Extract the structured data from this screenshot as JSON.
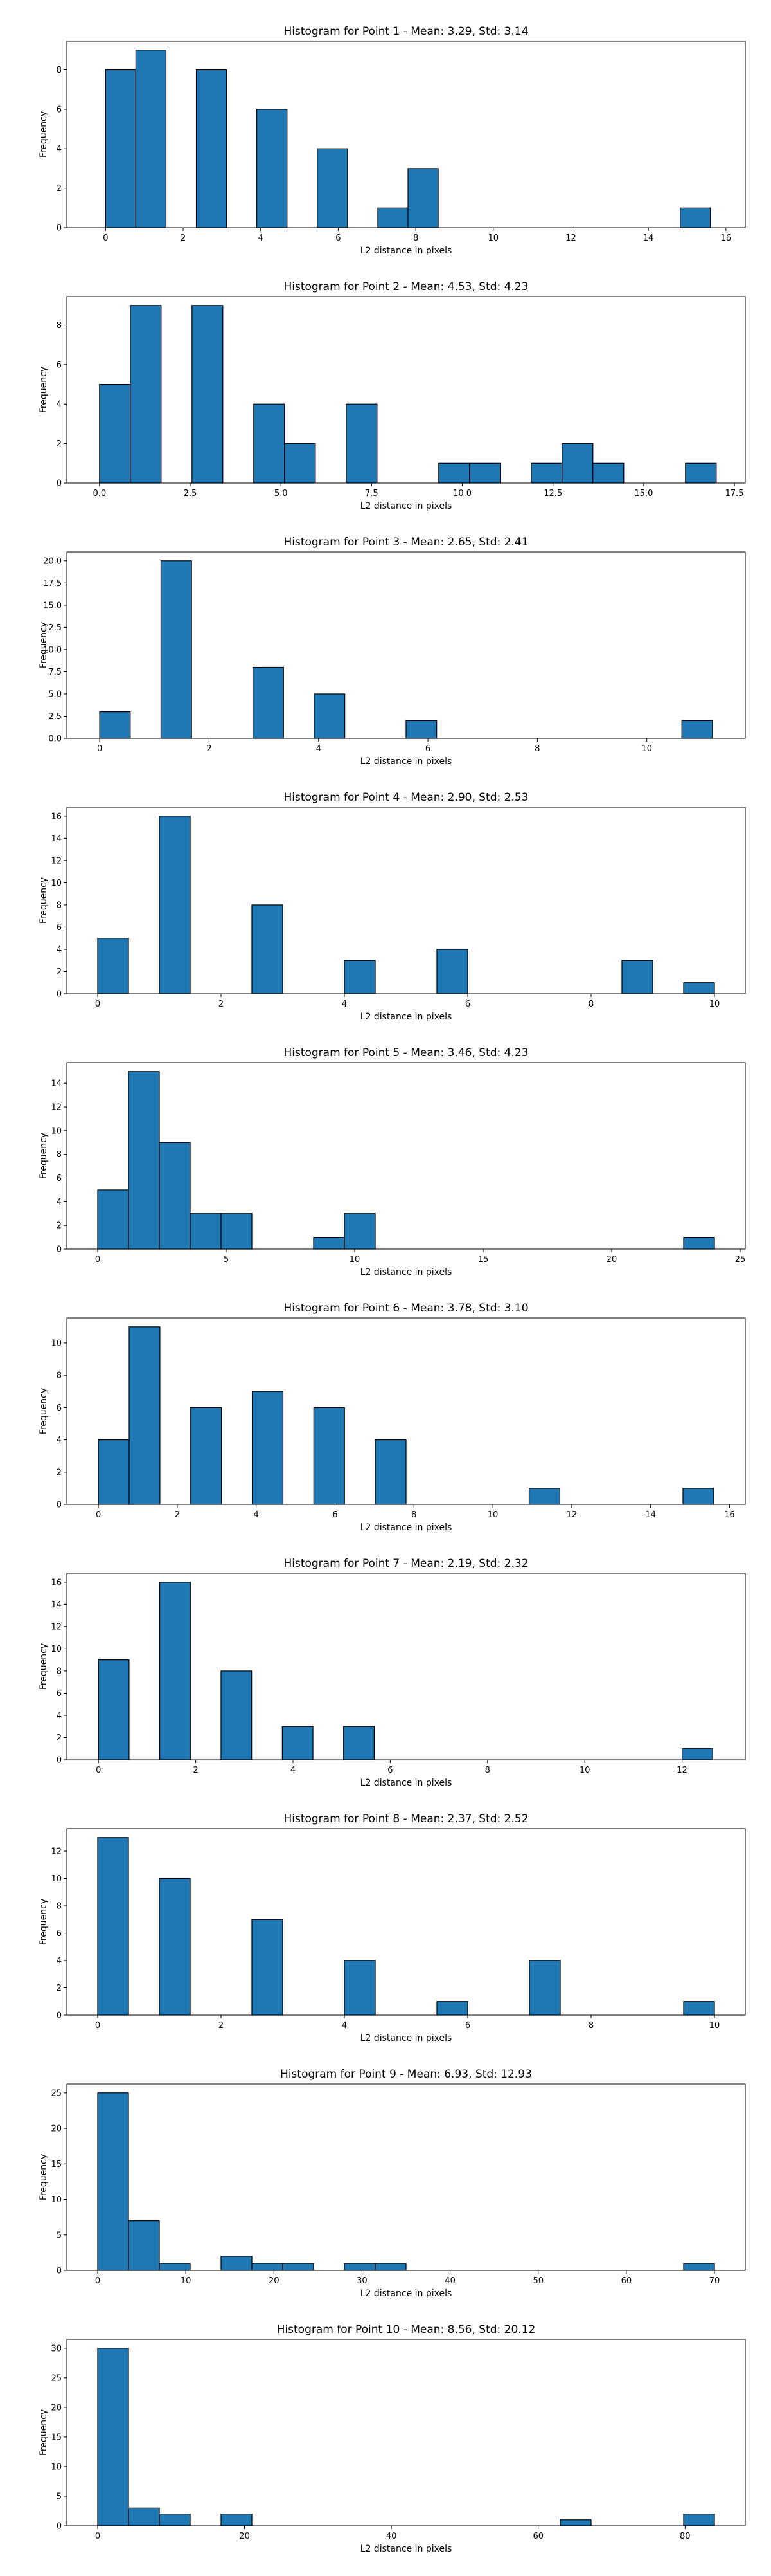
{
  "chart_data": [
    {
      "type": "bar",
      "title": "Histogram for Point 1 - Mean: 3.29, Std: 3.14",
      "xlabel": "L2 distance in pixels",
      "ylabel": "Frequency",
      "xlim": [
        -1.0,
        16.5
      ],
      "ylim": [
        0,
        9.45
      ],
      "xticks": [
        0,
        2,
        4,
        6,
        8,
        10,
        12,
        14,
        16
      ],
      "xtick_labels": [
        "0",
        "2",
        "4",
        "6",
        "8",
        "10",
        "12",
        "14",
        "16"
      ],
      "yticks": [
        0,
        2,
        4,
        6,
        8
      ],
      "ytick_labels": [
        "0",
        "2",
        "4",
        "6",
        "8"
      ],
      "bins": [
        {
          "x0": 0,
          "x1": 0.78,
          "count": 8
        },
        {
          "x0": 0.78,
          "x1": 1.56,
          "count": 9
        },
        {
          "x0": 2.34,
          "x1": 3.12,
          "count": 8
        },
        {
          "x0": 3.9,
          "x1": 4.68,
          "count": 6
        },
        {
          "x0": 5.46,
          "x1": 6.24,
          "count": 4
        },
        {
          "x0": 7.02,
          "x1": 7.8,
          "count": 1
        },
        {
          "x0": 7.8,
          "x1": 8.58,
          "count": 3
        },
        {
          "x0": 14.82,
          "x1": 15.6,
          "count": 1
        }
      ]
    },
    {
      "type": "bar",
      "title": "Histogram for Point 2 - Mean: 4.53, Std: 4.23",
      "xlabel": "L2 distance in pixels",
      "ylabel": "Frequency",
      "xlim": [
        -0.9,
        17.8
      ],
      "ylim": [
        0,
        9.45
      ],
      "xticks": [
        0,
        2.5,
        5,
        7.5,
        10,
        12.5,
        15,
        17.5
      ],
      "xtick_labels": [
        "0.0",
        "2.5",
        "5.0",
        "7.5",
        "10.0",
        "12.5",
        "15.0",
        "17.5"
      ],
      "yticks": [
        0,
        2,
        4,
        6,
        8
      ],
      "ytick_labels": [
        "0",
        "2",
        "4",
        "6",
        "8"
      ],
      "bins": [
        {
          "x0": 0,
          "x1": 0.85,
          "count": 5
        },
        {
          "x0": 0.85,
          "x1": 1.7,
          "count": 9
        },
        {
          "x0": 2.55,
          "x1": 3.4,
          "count": 9
        },
        {
          "x0": 4.25,
          "x1": 5.1,
          "count": 4
        },
        {
          "x0": 5.1,
          "x1": 5.95,
          "count": 2
        },
        {
          "x0": 6.8,
          "x1": 7.65,
          "count": 4
        },
        {
          "x0": 9.35,
          "x1": 10.2,
          "count": 1
        },
        {
          "x0": 10.2,
          "x1": 11.05,
          "count": 1
        },
        {
          "x0": 11.9,
          "x1": 12.75,
          "count": 1
        },
        {
          "x0": 12.75,
          "x1": 13.6,
          "count": 2
        },
        {
          "x0": 13.6,
          "x1": 14.45,
          "count": 1
        },
        {
          "x0": 16.15,
          "x1": 17.0,
          "count": 1
        }
      ]
    },
    {
      "type": "bar",
      "title": "Histogram for Point 3 - Mean: 2.65, Std: 2.41",
      "xlabel": "L2 distance in pixels",
      "ylabel": "Frequency",
      "xlim": [
        -0.6,
        11.8
      ],
      "ylim": [
        0,
        21.0
      ],
      "xticks": [
        0,
        2,
        4,
        6,
        8,
        10
      ],
      "xtick_labels": [
        "0",
        "2",
        "4",
        "6",
        "8",
        "10"
      ],
      "yticks": [
        0,
        2.5,
        5,
        7.5,
        10,
        12.5,
        15,
        17.5,
        20
      ],
      "ytick_labels": [
        "0.0",
        "2.5",
        "5.0",
        "7.5",
        "10.0",
        "12.5",
        "15.0",
        "17.5",
        "20.0"
      ],
      "bins": [
        {
          "x0": 0,
          "x1": 0.56,
          "count": 3
        },
        {
          "x0": 1.12,
          "x1": 1.68,
          "count": 20
        },
        {
          "x0": 2.8,
          "x1": 3.36,
          "count": 8
        },
        {
          "x0": 3.92,
          "x1": 4.48,
          "count": 5
        },
        {
          "x0": 5.6,
          "x1": 6.16,
          "count": 2
        },
        {
          "x0": 10.64,
          "x1": 11.2,
          "count": 2
        }
      ]
    },
    {
      "type": "bar",
      "title": "Histogram for Point 4 - Mean: 2.90, Std: 2.53",
      "xlabel": "L2 distance in pixels",
      "ylabel": "Frequency",
      "xlim": [
        -0.5,
        10.5
      ],
      "ylim": [
        0,
        16.8
      ],
      "xticks": [
        0,
        2,
        4,
        6,
        8,
        10
      ],
      "xtick_labels": [
        "0",
        "2",
        "4",
        "6",
        "8",
        "10"
      ],
      "yticks": [
        0,
        2,
        4,
        6,
        8,
        10,
        12,
        14,
        16
      ],
      "ytick_labels": [
        "0",
        "2",
        "4",
        "6",
        "8",
        "10",
        "12",
        "14",
        "16"
      ],
      "bins": [
        {
          "x0": 0,
          "x1": 0.5,
          "count": 5
        },
        {
          "x0": 1.0,
          "x1": 1.5,
          "count": 16
        },
        {
          "x0": 2.5,
          "x1": 3.0,
          "count": 8
        },
        {
          "x0": 4.0,
          "x1": 4.5,
          "count": 3
        },
        {
          "x0": 5.5,
          "x1": 6.0,
          "count": 4
        },
        {
          "x0": 8.5,
          "x1": 9.0,
          "count": 3
        },
        {
          "x0": 9.5,
          "x1": 10.0,
          "count": 1
        }
      ]
    },
    {
      "type": "bar",
      "title": "Histogram for Point 5 - Mean: 3.46, Std: 4.23",
      "xlabel": "L2 distance in pixels",
      "ylabel": "Frequency",
      "xlim": [
        -1.2,
        25.2
      ],
      "ylim": [
        0,
        15.75
      ],
      "xticks": [
        0,
        5,
        10,
        15,
        20,
        25
      ],
      "xtick_labels": [
        "0",
        "5",
        "10",
        "15",
        "20",
        "25"
      ],
      "yticks": [
        0,
        2,
        4,
        6,
        8,
        10,
        12,
        14
      ],
      "ytick_labels": [
        "0",
        "2",
        "4",
        "6",
        "8",
        "10",
        "12",
        "14"
      ],
      "bins": [
        {
          "x0": 0,
          "x1": 1.2,
          "count": 5
        },
        {
          "x0": 1.2,
          "x1": 2.4,
          "count": 15
        },
        {
          "x0": 2.4,
          "x1": 3.6,
          "count": 9
        },
        {
          "x0": 3.6,
          "x1": 4.8,
          "count": 3
        },
        {
          "x0": 4.8,
          "x1": 6.0,
          "count": 3
        },
        {
          "x0": 8.4,
          "x1": 9.6,
          "count": 1
        },
        {
          "x0": 9.6,
          "x1": 10.8,
          "count": 3
        },
        {
          "x0": 22.8,
          "x1": 24.0,
          "count": 1
        }
      ]
    },
    {
      "type": "bar",
      "title": "Histogram for Point 6 - Mean: 3.78, Std: 3.10",
      "xlabel": "L2 distance in pixels",
      "ylabel": "Frequency",
      "xlim": [
        -0.8,
        16.4
      ],
      "ylim": [
        0,
        11.55
      ],
      "xticks": [
        0,
        2,
        4,
        6,
        8,
        10,
        12,
        14,
        16
      ],
      "xtick_labels": [
        "0",
        "2",
        "4",
        "6",
        "8",
        "10",
        "12",
        "14",
        "16"
      ],
      "yticks": [
        0,
        2,
        4,
        6,
        8,
        10
      ],
      "ytick_labels": [
        "0",
        "2",
        "4",
        "6",
        "8",
        "10"
      ],
      "bins": [
        {
          "x0": 0,
          "x1": 0.78,
          "count": 4
        },
        {
          "x0": 0.78,
          "x1": 1.56,
          "count": 11
        },
        {
          "x0": 2.34,
          "x1": 3.12,
          "count": 6
        },
        {
          "x0": 3.9,
          "x1": 4.68,
          "count": 7
        },
        {
          "x0": 5.46,
          "x1": 6.24,
          "count": 6
        },
        {
          "x0": 7.02,
          "x1": 7.8,
          "count": 4
        },
        {
          "x0": 10.92,
          "x1": 11.7,
          "count": 1
        },
        {
          "x0": 14.82,
          "x1": 15.6,
          "count": 1
        }
      ]
    },
    {
      "type": "bar",
      "title": "Histogram for Point 7 - Mean: 2.19, Std: 2.32",
      "xlabel": "L2 distance in pixels",
      "ylabel": "Frequency",
      "xlim": [
        -0.65,
        13.3
      ],
      "ylim": [
        0,
        16.8
      ],
      "xticks": [
        0,
        2,
        4,
        6,
        8,
        10,
        12
      ],
      "xtick_labels": [
        "0",
        "2",
        "4",
        "6",
        "8",
        "10",
        "12"
      ],
      "yticks": [
        0,
        2,
        4,
        6,
        8,
        10,
        12,
        14,
        16
      ],
      "ytick_labels": [
        "0",
        "2",
        "4",
        "6",
        "8",
        "10",
        "12",
        "14",
        "16"
      ],
      "bins": [
        {
          "x0": 0,
          "x1": 0.63,
          "count": 9
        },
        {
          "x0": 1.26,
          "x1": 1.89,
          "count": 16
        },
        {
          "x0": 2.52,
          "x1": 3.15,
          "count": 8
        },
        {
          "x0": 3.78,
          "x1": 4.41,
          "count": 3
        },
        {
          "x0": 5.04,
          "x1": 5.67,
          "count": 3
        },
        {
          "x0": 12.0,
          "x1": 12.63,
          "count": 1
        }
      ]
    },
    {
      "type": "bar",
      "title": "Histogram for Point 8 - Mean: 2.37, Std: 2.52",
      "xlabel": "L2 distance in pixels",
      "ylabel": "Frequency",
      "xlim": [
        -0.5,
        10.5
      ],
      "ylim": [
        0,
        13.65
      ],
      "xticks": [
        0,
        2,
        4,
        6,
        8,
        10
      ],
      "xtick_labels": [
        "0",
        "2",
        "4",
        "6",
        "8",
        "10"
      ],
      "yticks": [
        0,
        2,
        4,
        6,
        8,
        10,
        12
      ],
      "ytick_labels": [
        "0",
        "2",
        "4",
        "6",
        "8",
        "10",
        "12"
      ],
      "bins": [
        {
          "x0": 0,
          "x1": 0.5,
          "count": 13
        },
        {
          "x0": 1.0,
          "x1": 1.5,
          "count": 10
        },
        {
          "x0": 2.5,
          "x1": 3.0,
          "count": 7
        },
        {
          "x0": 4.0,
          "x1": 4.5,
          "count": 4
        },
        {
          "x0": 5.5,
          "x1": 6.0,
          "count": 1
        },
        {
          "x0": 7.0,
          "x1": 7.5,
          "count": 4
        },
        {
          "x0": 9.5,
          "x1": 10.0,
          "count": 1
        }
      ]
    },
    {
      "type": "bar",
      "title": "Histogram for Point 9 - Mean: 6.93, Std: 12.93",
      "xlabel": "L2 distance in pixels",
      "ylabel": "Frequency",
      "xlim": [
        -3.5,
        73.5
      ],
      "ylim": [
        0,
        26.25
      ],
      "xticks": [
        0,
        10,
        20,
        30,
        40,
        50,
        60,
        70
      ],
      "xtick_labels": [
        "0",
        "10",
        "20",
        "30",
        "40",
        "50",
        "60",
        "70"
      ],
      "yticks": [
        0,
        5,
        10,
        15,
        20,
        25
      ],
      "ytick_labels": [
        "0",
        "5",
        "10",
        "15",
        "20",
        "25"
      ],
      "bins": [
        {
          "x0": 0,
          "x1": 3.5,
          "count": 25
        },
        {
          "x0": 3.5,
          "x1": 7.0,
          "count": 7
        },
        {
          "x0": 7.0,
          "x1": 10.5,
          "count": 1
        },
        {
          "x0": 14.0,
          "x1": 17.5,
          "count": 2
        },
        {
          "x0": 17.5,
          "x1": 21.0,
          "count": 1
        },
        {
          "x0": 21.0,
          "x1": 24.5,
          "count": 1
        },
        {
          "x0": 28.0,
          "x1": 31.5,
          "count": 1
        },
        {
          "x0": 31.5,
          "x1": 35.0,
          "count": 1
        },
        {
          "x0": 66.5,
          "x1": 70.0,
          "count": 1
        }
      ]
    },
    {
      "type": "bar",
      "title": "Histogram for Point 10 - Mean: 8.56, Std: 20.12",
      "xlabel": "L2 distance in pixels",
      "ylabel": "Frequency",
      "xlim": [
        -4.2,
        88.2
      ],
      "ylim": [
        0,
        31.5
      ],
      "xticks": [
        0,
        20,
        40,
        60,
        80
      ],
      "xtick_labels": [
        "0",
        "20",
        "40",
        "60",
        "80"
      ],
      "yticks": [
        0,
        5,
        10,
        15,
        20,
        25,
        30
      ],
      "ytick_labels": [
        "0",
        "5",
        "10",
        "15",
        "20",
        "25",
        "30"
      ],
      "bins": [
        {
          "x0": 0,
          "x1": 4.2,
          "count": 30
        },
        {
          "x0": 4.2,
          "x1": 8.4,
          "count": 3
        },
        {
          "x0": 8.4,
          "x1": 12.6,
          "count": 2
        },
        {
          "x0": 16.8,
          "x1": 21.0,
          "count": 2
        },
        {
          "x0": 63.0,
          "x1": 67.2,
          "count": 1
        },
        {
          "x0": 79.8,
          "x1": 84.0,
          "count": 2
        }
      ]
    }
  ]
}
